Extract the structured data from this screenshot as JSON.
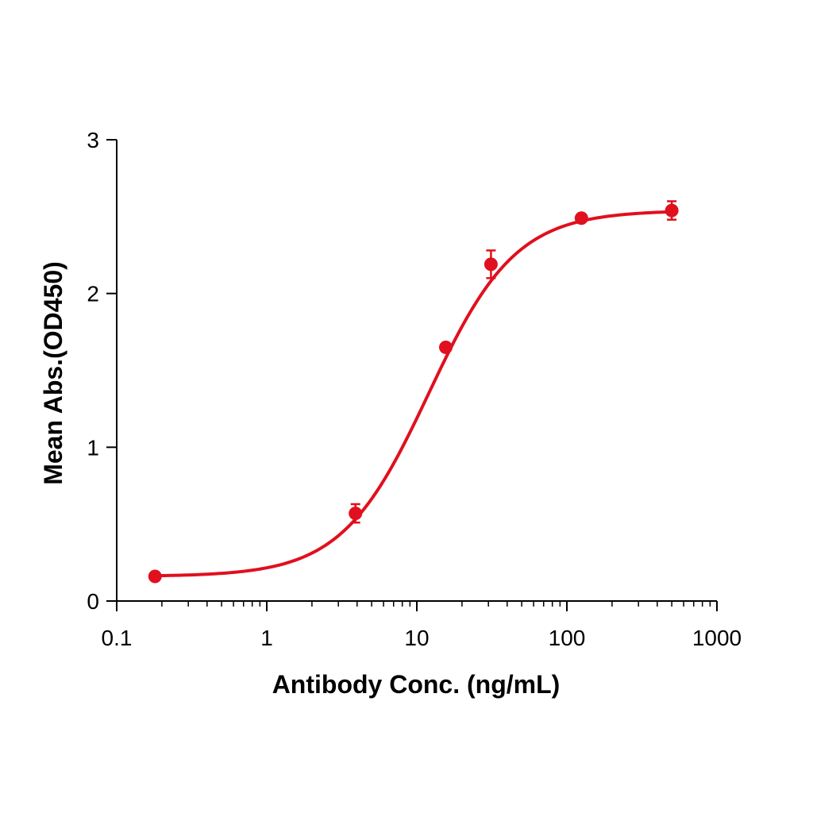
{
  "chart_data": {
    "type": "scatter",
    "title": "",
    "xlabel": "Antibody Conc. (ng/mL)",
    "ylabel": "Mean Abs.(OD450)",
    "x_scale": "log",
    "xlim": [
      0.1,
      1000
    ],
    "ylim": [
      0,
      3
    ],
    "x_ticks": [
      "0.1",
      "1",
      "10",
      "100",
      "1000"
    ],
    "y_ticks": [
      "0",
      "1",
      "2",
      "3"
    ],
    "grid": false,
    "color": "#e0101e",
    "series": [
      {
        "x": [
          0.18,
          3.9,
          15.6,
          31.2,
          125,
          500
        ],
        "y": [
          0.16,
          0.57,
          1.65,
          2.19,
          2.49,
          2.54
        ],
        "error": [
          0.02,
          0.06,
          0.02,
          0.09,
          0.02,
          0.06
        ],
        "fit": "4PL sigmoid"
      }
    ]
  }
}
